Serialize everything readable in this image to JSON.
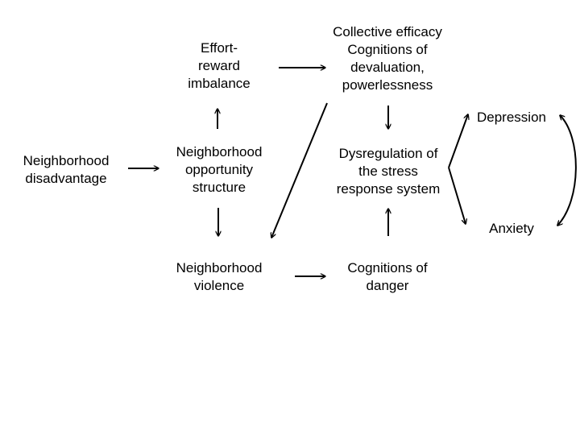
{
  "nodes": {
    "neighborhood_disadvantage": [
      "Neighborhood",
      "disadvantage"
    ],
    "opportunity_structure": [
      "Neighborhood",
      "opportunity",
      "structure"
    ],
    "effort_reward": [
      "Effort-",
      "reward",
      "imbalance"
    ],
    "collective_efficacy": [
      "Collective efficacy",
      "Cognitions of",
      "devaluation,",
      "powerlessness"
    ],
    "dysregulation": [
      "Dysregulation of",
      "the stress",
      "response system"
    ],
    "violence": [
      "Neighborhood",
      "violence"
    ],
    "cognitions_danger": [
      "Cognitions of",
      "danger"
    ],
    "depression": [
      "Depression"
    ],
    "anxiety": [
      "Anxiety"
    ]
  },
  "colors": {
    "background": "#ffffff",
    "text": "#000000",
    "arrow": "#000000"
  }
}
